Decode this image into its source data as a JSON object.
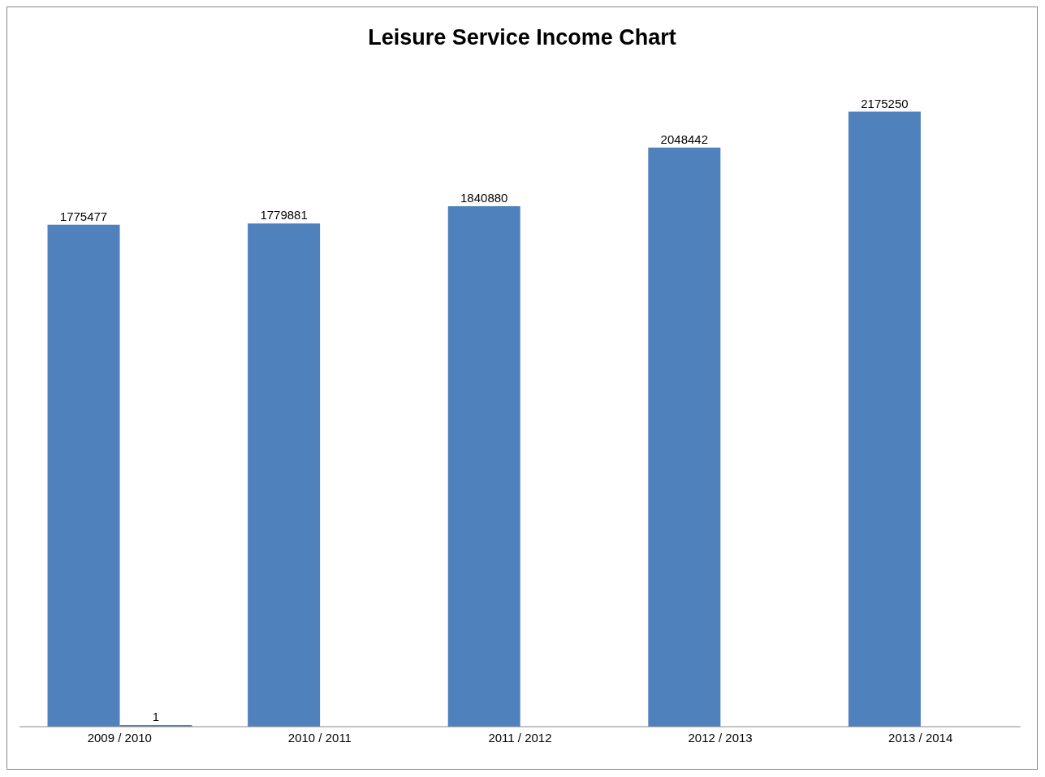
{
  "chart_data": {
    "type": "bar",
    "title": "Leisure Service Income Chart",
    "categories": [
      "2009 / 2010",
      "2010 / 2011",
      "2011 / 2012",
      "2012 / 2013",
      "2013 / 2014"
    ],
    "series": [
      {
        "color": "#4f81bd",
        "values": [
          1775477,
          1779881,
          1840880,
          2048442,
          2175250
        ]
      },
      {
        "color": "#4f81bd",
        "values": [
          1,
          null,
          null,
          null,
          null
        ]
      }
    ],
    "data_labels": true,
    "grid": false,
    "legend": false
  }
}
